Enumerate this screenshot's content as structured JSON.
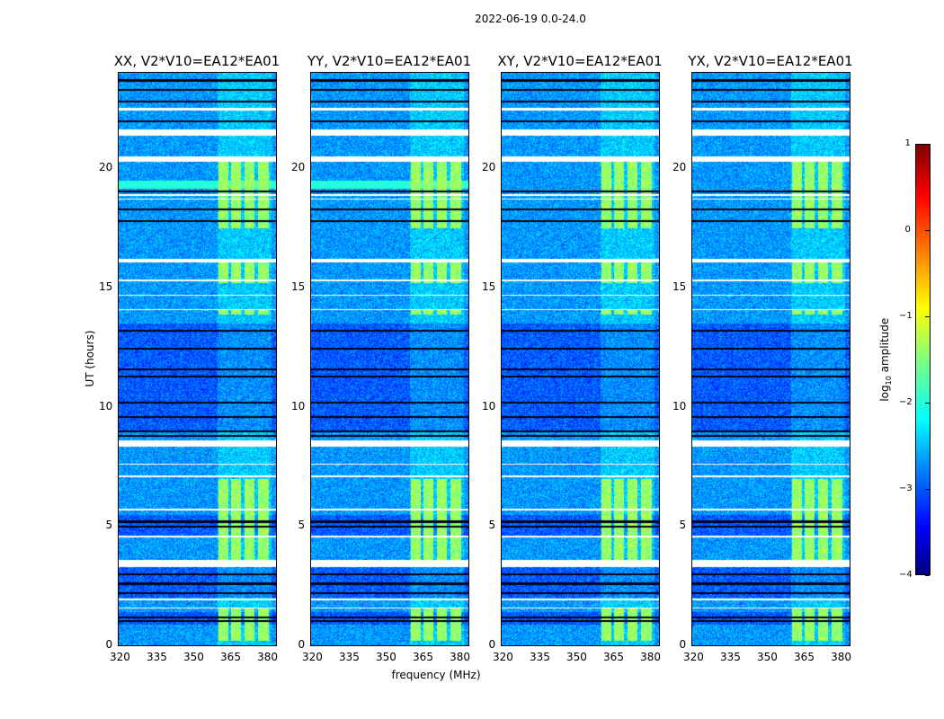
{
  "chart_data": {
    "type": "heatmap",
    "title": "2022-06-19 0.0-24.0",
    "xlabel": "frequency (MHz)",
    "ylabel": "UT (hours)",
    "xlim": [
      320,
      384
    ],
    "ylim": [
      0,
      24
    ],
    "xticks": [
      320,
      335,
      350,
      365,
      380
    ],
    "xtick_labels": [
      "320",
      "335",
      "350",
      "365",
      "380"
    ],
    "yticks": [
      0,
      5,
      10,
      15,
      20
    ],
    "ytick_labels": [
      "0",
      "5",
      "10",
      "15",
      "20"
    ],
    "panels": [
      {
        "title": "XX, V2*V10=EA12*EA01",
        "cyan_band": true
      },
      {
        "title": "YY, V2*V10=EA12*EA01",
        "cyan_band": true
      },
      {
        "title": "XY, V2*V10=EA12*EA01",
        "cyan_band": false
      },
      {
        "title": "YX, V2*V10=EA12*EA01",
        "cyan_band": false
      }
    ],
    "bright_subbands_mhz": [
      [
        360.5,
        364.5
      ],
      [
        365.5,
        369.5
      ],
      [
        371,
        375
      ],
      [
        376.5,
        381
      ]
    ],
    "flagged_hours": [
      [
        22.45,
        22.55
      ],
      [
        21.4,
        21.65
      ],
      [
        20.3,
        20.52
      ],
      [
        18.85,
        18.95
      ],
      [
        18.7,
        18.75
      ],
      [
        16.08,
        16.22
      ],
      [
        15.28,
        15.34
      ],
      [
        14.68,
        14.72
      ],
      [
        14.08,
        14.12
      ],
      [
        8.35,
        8.6
      ],
      [
        7.58,
        7.64
      ],
      [
        7.08,
        7.14
      ],
      [
        5.68,
        5.74
      ],
      [
        4.55,
        4.6
      ],
      [
        3.3,
        3.6
      ],
      [
        1.92,
        1.98
      ],
      [
        1.55,
        1.62
      ]
    ],
    "low_hours": [
      [
        9.0,
        13.5
      ],
      [
        2.0,
        3.3
      ],
      [
        4.6,
        5.5
      ],
      [
        0.9,
        1.4
      ]
    ],
    "bright_hours": [
      [
        15.2,
        16.1
      ],
      [
        13.9,
        14.1
      ],
      [
        3.6,
        7.0
      ],
      [
        0.2,
        1.6
      ],
      [
        17.5,
        20.3
      ]
    ],
    "colorbar": {
      "label": "log10 amplitude",
      "range": [
        -4,
        1
      ],
      "ticks": [
        1,
        0,
        -1,
        -2,
        -3,
        -4
      ],
      "tick_labels": [
        "1",
        "0",
        "−1",
        "−2",
        "−3",
        "−4"
      ],
      "colormap": "jet"
    }
  }
}
